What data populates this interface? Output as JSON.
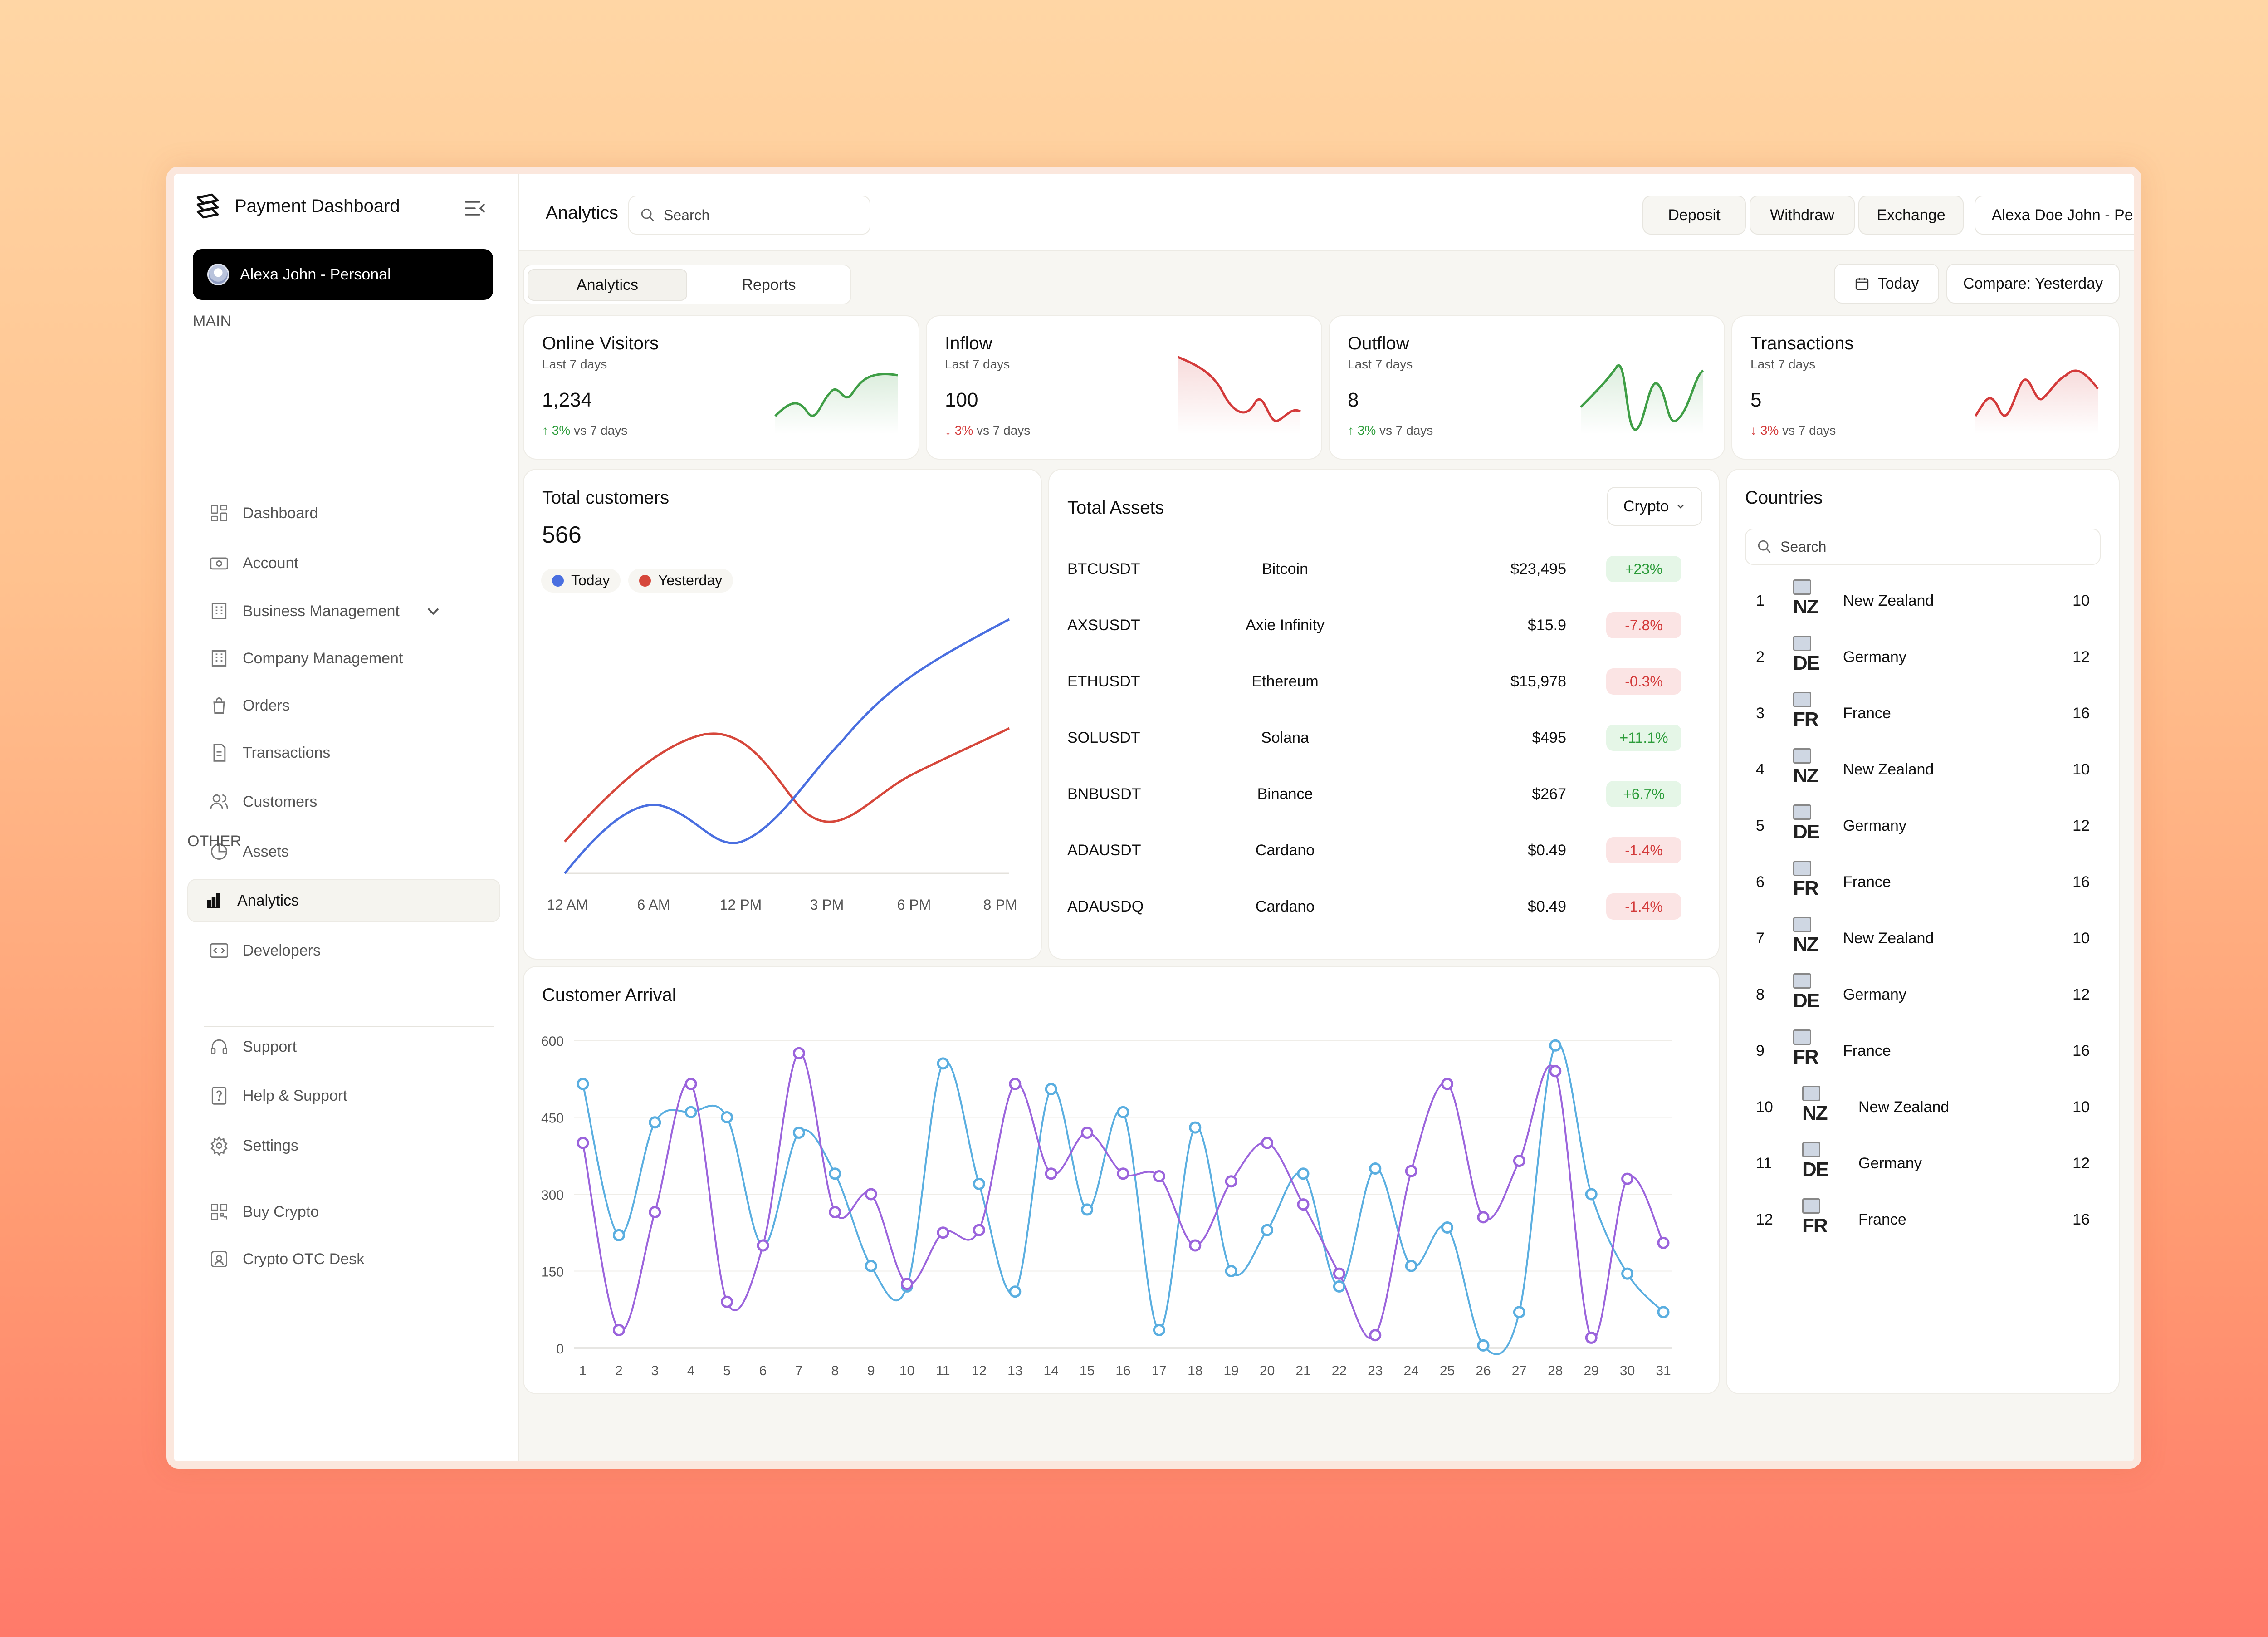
{
  "app": {
    "title": "Payment Dashboard",
    "account_label": "Alexa John - Personal"
  },
  "sidebar": {
    "main_label": "MAIN",
    "other_label": "OTHER",
    "main_items": [
      {
        "label": "Dashboard"
      },
      {
        "label": "Account"
      },
      {
        "label": "Business Management"
      },
      {
        "label": "Company Management"
      },
      {
        "label": "Orders"
      },
      {
        "label": "Transactions"
      },
      {
        "label": "Customers"
      },
      {
        "label": "Assets"
      },
      {
        "label": "Analytics"
      },
      {
        "label": "Developers"
      }
    ],
    "other_items": [
      {
        "label": "Support"
      },
      {
        "label": "Help & Support"
      },
      {
        "label": "Settings"
      }
    ],
    "extra_items": [
      {
        "label": "Buy Crypto"
      },
      {
        "label": "Crypto OTC Desk"
      }
    ],
    "active": "Analytics"
  },
  "header": {
    "title": "Analytics",
    "search_placeholder": "Search",
    "deposit": "Deposit",
    "withdraw": "Withdraw",
    "exchange": "Exchange",
    "user": "Alexa Doe John - Personal"
  },
  "tabs": [
    {
      "label": "Analytics"
    },
    {
      "label": "Reports"
    }
  ],
  "filters": {
    "today": "Today",
    "compare": "Compare: Yesterday"
  },
  "stats": [
    {
      "title": "Online Visitors",
      "period": "Last 7 days",
      "value": "1,234",
      "change": "3%",
      "direction": "up",
      "vs": "vs 7 days",
      "color": "#3f9e46"
    },
    {
      "title": "Inflow",
      "period": "Last 7 days",
      "value": "100",
      "change": "3%",
      "direction": "down",
      "vs": "vs 7 days",
      "color": "#d33a3a"
    },
    {
      "title": "Outflow",
      "period": "Last 7 days",
      "value": "8",
      "change": "3%",
      "direction": "up",
      "vs": "vs 7 days",
      "color": "#3f9e46"
    },
    {
      "title": "Transactions",
      "period": "Last 7 days",
      "value": "5",
      "change": "3%",
      "direction": "down",
      "vs": "vs 7 days",
      "color": "#d33a3a"
    }
  ],
  "total_customers": {
    "title": "Total customers",
    "value": "566",
    "legend_today": "Today",
    "legend_yesterday": "Yesterday",
    "today_color": "#4a6fe0",
    "yesterday_color": "#d6473b",
    "x_labels": [
      "12 AM",
      "6 AM",
      "12 PM",
      "3 PM",
      "6 PM",
      "8 PM"
    ]
  },
  "total_assets": {
    "title": "Total Assets",
    "dropdown": "Crypto",
    "rows": [
      {
        "symbol": "BTCUSDT",
        "name": "Bitcoin",
        "price": "$23,495",
        "change": "+23%",
        "dir": "up"
      },
      {
        "symbol": "AXSUSDT",
        "name": "Axie Infinity",
        "price": "$15.9",
        "change": "-7.8%",
        "dir": "down"
      },
      {
        "symbol": "ETHUSDT",
        "name": "Ethereum",
        "price": "$15,978",
        "change": "-0.3%",
        "dir": "down"
      },
      {
        "symbol": "SOLUSDT",
        "name": "Solana",
        "price": "$495",
        "change": "+11.1%",
        "dir": "up"
      },
      {
        "symbol": "BNBUSDT",
        "name": "Binance",
        "price": "$267",
        "change": "+6.7%",
        "dir": "up"
      },
      {
        "symbol": "ADAUSDT",
        "name": "Cardano",
        "price": "$0.49",
        "change": "-1.4%",
        "dir": "down"
      },
      {
        "symbol": "ADAUSDQ",
        "name": "Cardano",
        "price": "$0.49",
        "change": "-1.4%",
        "dir": "down"
      }
    ]
  },
  "countries": {
    "title": "Countries",
    "search_placeholder": "Search",
    "rows": [
      {
        "rank": "1",
        "flag": "NZ",
        "name": "New Zealand",
        "count": "10"
      },
      {
        "rank": "2",
        "flag": "DE",
        "name": "Germany",
        "count": "12"
      },
      {
        "rank": "3",
        "flag": "FR",
        "name": "France",
        "count": "16"
      },
      {
        "rank": "4",
        "flag": "NZ",
        "name": "New Zealand",
        "count": "10"
      },
      {
        "rank": "5",
        "flag": "DE",
        "name": "Germany",
        "count": "12"
      },
      {
        "rank": "6",
        "flag": "FR",
        "name": "France",
        "count": "16"
      },
      {
        "rank": "7",
        "flag": "NZ",
        "name": "New Zealand",
        "count": "10"
      },
      {
        "rank": "8",
        "flag": "DE",
        "name": "Germany",
        "count": "12"
      },
      {
        "rank": "9",
        "flag": "FR",
        "name": "France",
        "count": "16"
      },
      {
        "rank": "10",
        "flag": "NZ",
        "name": "New Zealand",
        "count": "10"
      },
      {
        "rank": "11",
        "flag": "DE",
        "name": "Germany",
        "count": "12"
      },
      {
        "rank": "12",
        "flag": "FR",
        "name": "France",
        "count": "16"
      }
    ]
  },
  "chart_data": {
    "type": "line",
    "title": "Customer Arrival",
    "x": [
      1,
      2,
      3,
      4,
      5,
      6,
      7,
      8,
      9,
      10,
      11,
      12,
      13,
      14,
      15,
      16,
      17,
      18,
      19,
      20,
      21,
      22,
      23,
      24,
      25,
      26,
      27,
      28,
      29,
      30,
      31
    ],
    "ylim": [
      0,
      600
    ],
    "yticks": [
      0,
      150,
      300,
      450,
      600
    ],
    "series": [
      {
        "color": "#5aaee0",
        "values": [
          515,
          220,
          440,
          460,
          450,
          200,
          420,
          340,
          160,
          120,
          555,
          320,
          110,
          505,
          270,
          460,
          35,
          430,
          150,
          230,
          340,
          120,
          350,
          160,
          235,
          5,
          70,
          590,
          300,
          145,
          70
        ]
      },
      {
        "color": "#9b64dc",
        "values": [
          400,
          35,
          265,
          515,
          90,
          200,
          575,
          265,
          300,
          125,
          225,
          230,
          515,
          340,
          420,
          340,
          335,
          200,
          325,
          400,
          280,
          145,
          25,
          345,
          515,
          255,
          365,
          540,
          20,
          330,
          205
        ]
      }
    ]
  }
}
